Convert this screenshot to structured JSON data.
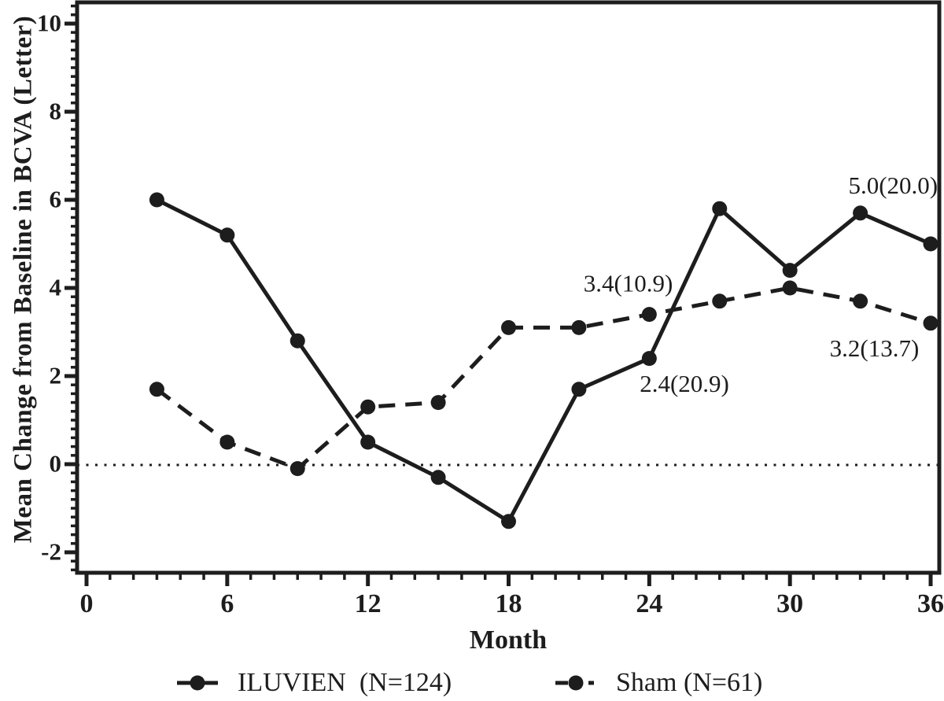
{
  "figure": {
    "background": "#ffffff",
    "ink_color": "#1d1d1d"
  },
  "chart_data": {
    "type": "line",
    "title": "",
    "xlabel": "Month",
    "ylabel": "Mean Change from Baseline in BCVA (Letter)",
    "x": [
      3,
      6,
      9,
      12,
      15,
      18,
      21,
      24,
      27,
      30,
      33,
      36
    ],
    "series": [
      {
        "name": "ILUVIEN  (N=124)",
        "line_style": "solid",
        "marker": "filled-circle",
        "values": [
          6.0,
          5.2,
          2.8,
          0.5,
          -0.3,
          -1.3,
          1.7,
          2.4,
          5.8,
          4.4,
          5.7,
          5.0
        ]
      },
      {
        "name": "Sham (N=61)",
        "line_style": "dashed",
        "marker": "filled-circle",
        "values": [
          1.7,
          0.5,
          -0.1,
          1.3,
          1.4,
          3.1,
          3.1,
          3.4,
          3.7,
          4.0,
          3.7,
          3.2
        ]
      }
    ],
    "xlim": [
      0,
      36
    ],
    "ylim": [
      -2.5,
      10.5
    ],
    "x_major_ticks": [
      0,
      6,
      12,
      18,
      24,
      30,
      36
    ],
    "x_minor_step": 1,
    "y_major_ticks": [
      -2,
      0,
      2,
      4,
      6,
      8,
      10
    ],
    "y_minor_step": 0.2,
    "reference_line_y": 0,
    "grid": false,
    "legend_position": "bottom",
    "annotations": [
      {
        "text": "5.0(20.0)",
        "x": 34.4,
        "y": 6.34
      },
      {
        "text": "3.4(10.9)",
        "x": 23.1,
        "y": 4.11
      },
      {
        "text": "2.4(20.9)",
        "x": 25.5,
        "y": 1.84
      },
      {
        "text": "3.2(13.7)",
        "x": 33.6,
        "y": 2.64
      }
    ]
  }
}
